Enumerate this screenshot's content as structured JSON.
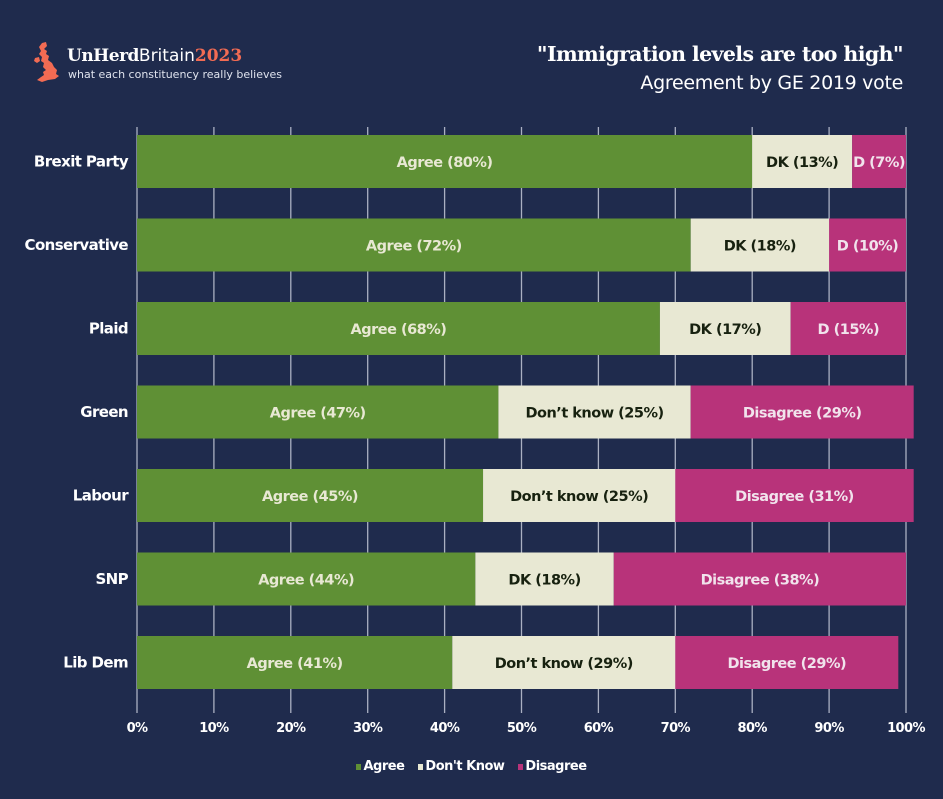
{
  "brand": {
    "name_part1": "UnHerd",
    "name_part2": "Britain",
    "name_part3": "2023",
    "tagline": "what each constituency really believes",
    "logo_icon": "uk-map-icon",
    "accent_color": "#f26b53"
  },
  "header": {
    "title": "\"Immigration levels are too high\"",
    "subtitle": "Agreement by GE 2019 vote"
  },
  "legend": [
    {
      "label": "Agree",
      "color": "#5f9035"
    },
    {
      "label": "Don't Know",
      "color": "#e8e8d3"
    },
    {
      "label": "Disagree",
      "color": "#b8337a"
    }
  ],
  "chart_data": {
    "type": "bar",
    "orientation": "horizontal",
    "stacked": true,
    "percent_stacked": true,
    "title": "\"Immigration levels are too high\"",
    "subtitle": "Agreement by GE 2019 vote",
    "xlabel": "",
    "ylabel": "",
    "xlim": [
      0,
      100
    ],
    "x_ticks": [
      "0%",
      "10%",
      "20%",
      "30%",
      "40%",
      "50%",
      "60%",
      "70%",
      "80%",
      "90%",
      "100%"
    ],
    "grid": "vertical",
    "legend_position": "bottom",
    "categories": [
      "Brexit Party",
      "Conservative",
      "Plaid",
      "Green",
      "Labour",
      "SNP",
      "Lib Dem"
    ],
    "series": [
      {
        "name": "Agree",
        "color": "#5f9035",
        "text_color": "#e8e8d3",
        "values": [
          80,
          72,
          68,
          47,
          45,
          44,
          41
        ],
        "labels": [
          "Agree (80%)",
          "Agree (72%)",
          "Agree (68%)",
          "Agree (47%)",
          "Agree (45%)",
          "Agree (44%)",
          "Agree (41%)"
        ]
      },
      {
        "name": "Don't Know",
        "color": "#e8e8d3",
        "text_color": "#17210f",
        "values": [
          13,
          18,
          17,
          25,
          25,
          18,
          29
        ],
        "labels": [
          "DK (13%)",
          "DK (18%)",
          "DK (17%)",
          "Don’t know (25%)",
          "Don’t know (25%)",
          "DK (18%)",
          "Don’t know (29%)"
        ]
      },
      {
        "name": "Disagree",
        "color": "#b8337a",
        "text_color": "#f1e3ec",
        "values": [
          7,
          10,
          15,
          29,
          31,
          38,
          29
        ],
        "labels": [
          "D (7%)",
          "D (10%)",
          "D (15%)",
          "Disagree (29%)",
          "Disagree (31%)",
          "Disagree (38%)",
          "Disagree (29%)"
        ]
      }
    ]
  }
}
